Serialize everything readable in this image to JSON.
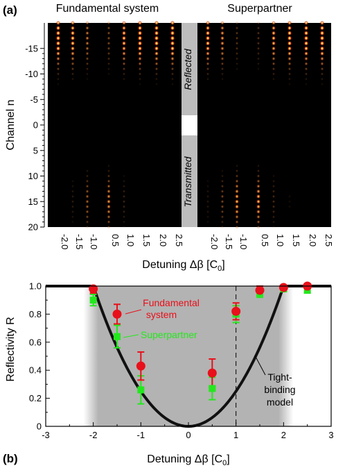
{
  "panel_a": {
    "label": "(a)",
    "left_title": "Fundamental system",
    "right_title": "Superpartner",
    "ylabel": "Channel n",
    "xlabel": "Detuning Δβ [C",
    "xlabel_sub": "0",
    "xlabel_end": "]",
    "reflected_label": "Reflected",
    "transmitted_label": "Transmitted",
    "yticks": [
      "-15",
      "-10",
      "-5",
      "0",
      "5",
      "10",
      "15",
      "20"
    ],
    "column_labels": [
      "-2.0",
      "-1.5",
      "-1.0",
      "0.5",
      "1.0",
      "1.5",
      "2.0",
      "2.5"
    ]
  },
  "panel_b": {
    "label": "(b)",
    "fundamental_label_1": "Fundamental",
    "fundamental_label_2": "system",
    "superpartner_label": "Superpartner",
    "model_label_1": "Tight-",
    "model_label_2": "binding",
    "model_label_3": "model"
  },
  "colors": {
    "fundamental": "#e8101a",
    "superpartner": "#23e81d",
    "model": "#111111",
    "band": "#b3b3b3",
    "separator": "#bdbdbd"
  },
  "chart_data": [
    {
      "type": "heatmap",
      "title": "Fundamental system",
      "ylabel": "Channel n",
      "xlabel": "Detuning Δβ [C0]",
      "columns": [
        -2.0,
        -1.5,
        -1.0,
        0.5,
        1.0,
        1.5,
        2.0,
        2.5
      ],
      "reflected_intensity": [
        0.97,
        0.86,
        0.55,
        0.36,
        0.82,
        0.96,
        0.98,
        0.99
      ],
      "transmitted_intensity": [
        0.03,
        0.14,
        0.45,
        0.64,
        0.18,
        0.04,
        0.02,
        0.01
      ],
      "ylim": [
        -20,
        20
      ]
    },
    {
      "type": "heatmap",
      "title": "Superpartner",
      "columns": [
        -2.0,
        -1.5,
        -1.0,
        0.5,
        1.0,
        1.5,
        2.0,
        2.5
      ],
      "reflected_intensity": [
        0.88,
        0.66,
        0.26,
        0.24,
        0.78,
        0.93,
        0.97,
        0.99
      ],
      "transmitted_intensity": [
        0.12,
        0.34,
        0.74,
        0.76,
        0.22,
        0.07,
        0.03,
        0.01
      ],
      "ylim": [
        -20,
        20
      ]
    },
    {
      "type": "scatter",
      "xlabel": "Detuning Δβ [C0]",
      "ylabel": "Reflectivity R",
      "xlim": [
        -3,
        3
      ],
      "ylim": [
        0,
        1
      ],
      "xticks": [
        -3,
        -2,
        -1,
        0,
        1,
        2,
        3
      ],
      "yticks": [
        0,
        0.2,
        0.4,
        0.6,
        0.8,
        1.0
      ],
      "shaded_band": [
        -2,
        2
      ],
      "dashed_line_x": 1,
      "series": [
        {
          "name": "Fundamental system",
          "x": [
            -2.0,
            -1.5,
            -1.0,
            0.5,
            1.0,
            1.5,
            2.0,
            2.5
          ],
          "y": [
            0.98,
            0.8,
            0.43,
            0.38,
            0.82,
            0.97,
            0.99,
            1.0
          ],
          "err": [
            0.03,
            0.07,
            0.1,
            0.1,
            0.06,
            0.03,
            0.02,
            0.01
          ]
        },
        {
          "name": "Superpartner",
          "x": [
            -2.0,
            -1.5,
            -1.0,
            0.5,
            1.0,
            1.5,
            2.0,
            2.5
          ],
          "y": [
            0.9,
            0.64,
            0.26,
            0.27,
            0.8,
            0.95,
            0.98,
            0.97
          ],
          "err": [
            0.04,
            0.08,
            0.1,
            0.08,
            0.06,
            0.03,
            0.02,
            0.02
          ]
        },
        {
          "name": "Tight-binding model",
          "type": "line",
          "formula": "R = (x/2)^2 for |x|<=2, otherwise 1"
        }
      ]
    }
  ]
}
